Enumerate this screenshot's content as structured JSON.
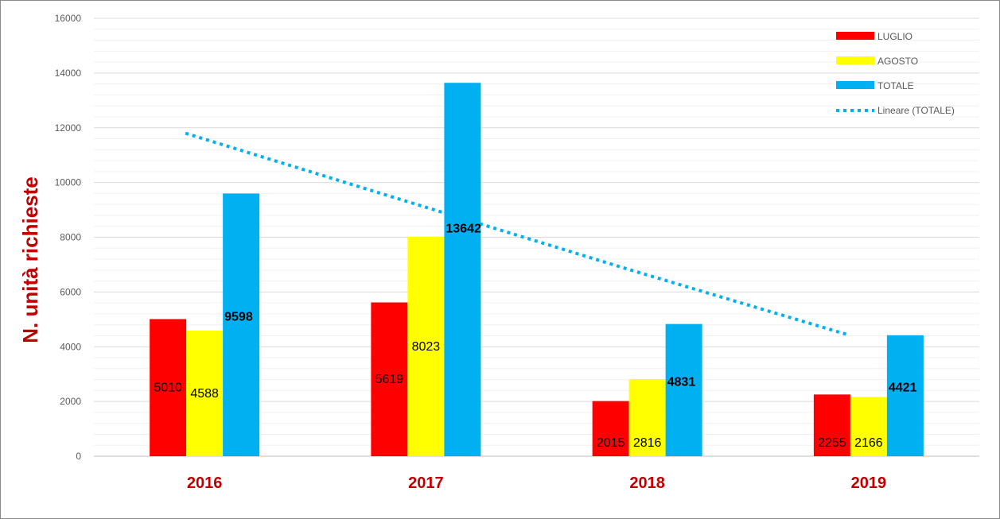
{
  "chart_data": {
    "type": "bar",
    "categories": [
      "2016",
      "2017",
      "2018",
      "2019"
    ],
    "series": [
      {
        "name": "LUGLIO",
        "color": "#ff0000",
        "values": [
          5010,
          5619,
          2015,
          2255
        ]
      },
      {
        "name": "AGOSTO",
        "color": "#ffff00",
        "values": [
          4588,
          8023,
          2816,
          2166
        ]
      },
      {
        "name": "TOTALE",
        "color": "#00b0f0",
        "values": [
          9598,
          13642,
          4831,
          4421
        ]
      }
    ],
    "trendline": {
      "name": "Lineare (TOTALE)",
      "color": "#00b0f0",
      "style": "dotted",
      "values": [
        11800,
        9310,
        6830,
        4420
      ]
    },
    "title": "",
    "xlabel": "",
    "ylabel": "N. unità richieste",
    "ylim": [
      0,
      16000
    ],
    "yticks": [
      "0",
      "2000",
      "4000",
      "6000",
      "8000",
      "10000",
      "12000",
      "14000",
      "16000"
    ],
    "grid": true,
    "legend_position": "top-right"
  }
}
